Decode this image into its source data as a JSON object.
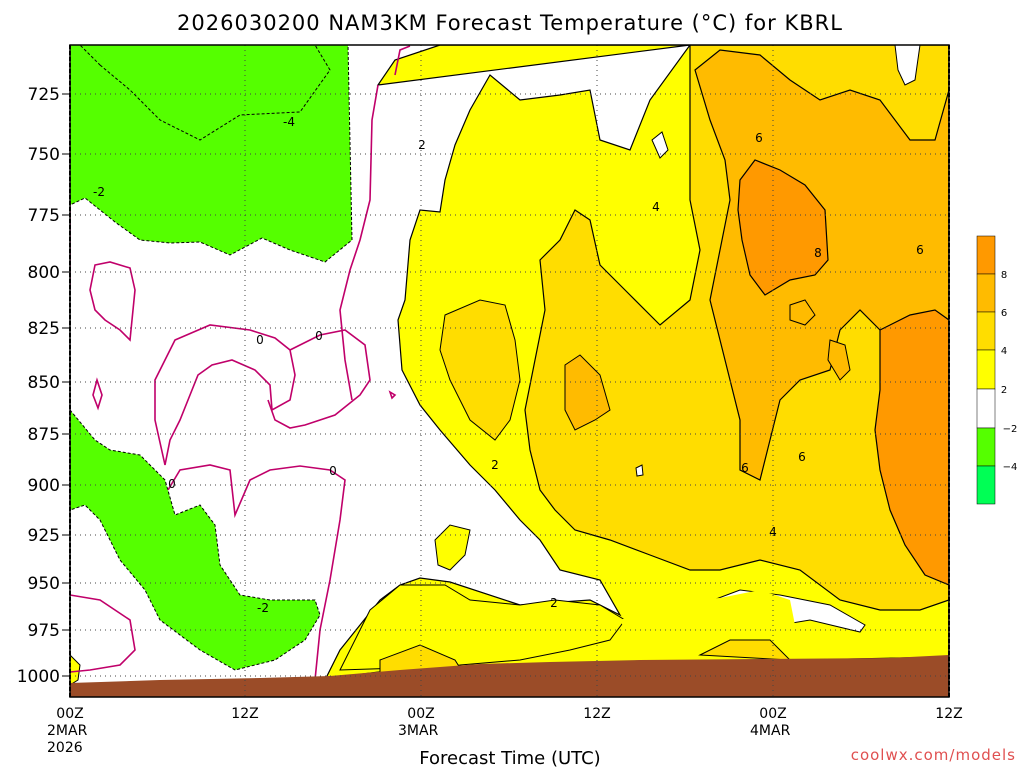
{
  "chart_data": {
    "type": "heatmap",
    "title": "2026030200 NAM3KM Forecast Temperature (°C) for KBRL",
    "xlabel": "Forecast Time (UTC)",
    "ylabel": "",
    "y_ticks": [
      "725",
      "750",
      "775",
      "800",
      "825",
      "850",
      "875",
      "900",
      "925",
      "950",
      "975",
      "1000"
    ],
    "x_ticks": [
      {
        "time": "00Z",
        "line2": "2MAR",
        "line3": "2026"
      },
      {
        "time": "12Z",
        "line2": "",
        "line3": ""
      },
      {
        "time": "00Z",
        "line2": "3MAR",
        "line3": ""
      },
      {
        "time": "12Z",
        "line2": "",
        "line3": ""
      },
      {
        "time": "00Z",
        "line2": "4MAR",
        "line3": ""
      },
      {
        "time": "12Z",
        "line2": "",
        "line3": ""
      }
    ],
    "colorbar": {
      "labels": [
        "8",
        "6",
        "4",
        "2",
        "−2",
        "−4"
      ],
      "colors": [
        "#ff9900",
        "#ffbb00",
        "#ffdd00",
        "#ffff00",
        "#ffffff",
        "#55ff00",
        "#00ff55"
      ]
    },
    "contour_labels": [
      "-4",
      "-2",
      "2",
      "0",
      "0",
      "0",
      "0",
      "4",
      "6",
      "8",
      "6",
      "2",
      "6",
      "6",
      "4",
      "2",
      "-2"
    ],
    "fill_colors": {
      "ground": "#9b4c28",
      "cold1": "#55ff00",
      "warm2": "#ffff00",
      "warm4": "#ffdd00",
      "warm6": "#ffbb00",
      "warm8": "#ff9900",
      "zero_line": "#c0006a"
    },
    "credit": "coolwx.com/models"
  }
}
